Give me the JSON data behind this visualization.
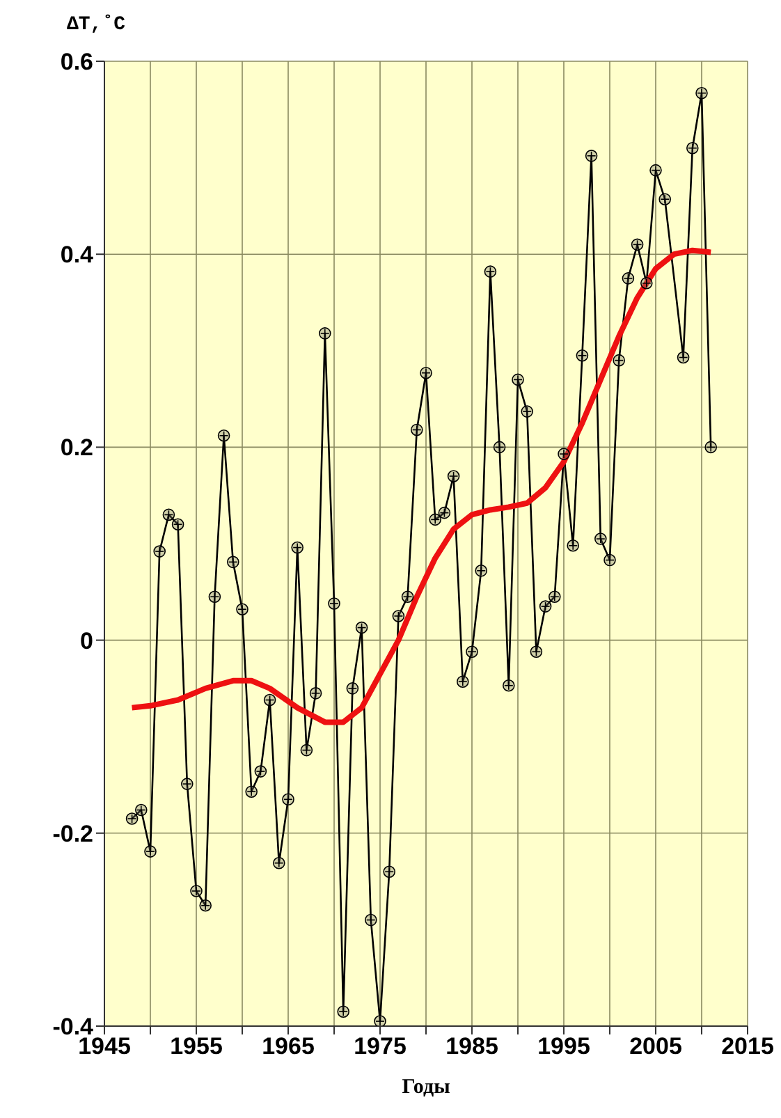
{
  "chart_data": {
    "type": "line",
    "ylabel": "ΔT,˚C",
    "xlabel": "Годы",
    "xlim": [
      1945,
      2015
    ],
    "xticks": [
      1945,
      {
        "value": 1950,
        "label": null
      },
      1955,
      {
        "value": 1960,
        "label": null
      },
      1965,
      {
        "value": 1970,
        "label": null
      },
      1975,
      {
        "value": 1980,
        "label": null
      },
      1985,
      {
        "value": 1990,
        "label": null
      },
      1995,
      {
        "value": 2000,
        "label": null
      },
      2005,
      {
        "value": 2010,
        "label": null
      },
      2015
    ],
    "ylim": [
      -0.4,
      0.6
    ],
    "yticks": [
      -0.4,
      -0.2,
      0,
      0.2,
      0.4,
      0.6
    ],
    "grid": true,
    "series": [
      {
        "color": "#000000",
        "marker": "circle",
        "x": [
          1948,
          1949,
          1950,
          1951,
          1952,
          1953,
          1954,
          1955,
          1956,
          1957,
          1958,
          1959,
          1960,
          1961,
          1962,
          1963,
          1964,
          1965,
          1966,
          1967,
          1968,
          1969,
          1970,
          1971,
          1972,
          1973,
          1974,
          1975,
          1976,
          1977,
          1978,
          1979,
          1980,
          1981,
          1982,
          1983,
          1984,
          1985,
          1986,
          1987,
          1988,
          1989,
          1990,
          1991,
          1992,
          1993,
          1994,
          1995,
          1996,
          1997,
          1998,
          1999,
          2000,
          2001,
          2002,
          2003,
          2004,
          2005,
          2006,
          2008,
          2009,
          2010,
          2011
        ],
        "values": [
          -0.185,
          -0.176,
          -0.219,
          0.092,
          0.13,
          0.12,
          -0.149,
          -0.26,
          -0.275,
          0.045,
          0.212,
          0.081,
          0.032,
          -0.157,
          -0.136,
          -0.062,
          -0.231,
          -0.165,
          0.096,
          -0.114,
          -0.055,
          0.318,
          0.038,
          -0.385,
          -0.05,
          0.013,
          -0.29,
          -0.395,
          -0.24,
          0.025,
          0.045,
          0.218,
          0.277,
          0.125,
          0.132,
          0.17,
          -0.043,
          -0.012,
          0.072,
          0.382,
          0.2,
          -0.047,
          0.27,
          0.237,
          -0.012,
          0.035,
          0.045,
          0.193,
          0.098,
          0.295,
          0.502,
          0.105,
          0.083,
          0.29,
          0.375,
          0.41,
          0.37,
          0.487,
          0.457,
          0.293,
          0.51,
          0.567,
          0.2
        ]
      },
      {
        "color": "#ee1111",
        "marker": "none",
        "x": [
          1948,
          1950,
          1953,
          1956,
          1959,
          1961,
          1963,
          1966,
          1969,
          1971,
          1973,
          1975,
          1977,
          1979,
          1981,
          1983,
          1985,
          1987,
          1989,
          1991,
          1993,
          1995,
          1997,
          1999,
          2001,
          2003,
          2005,
          2007,
          2009,
          2011
        ],
        "values": [
          -0.07,
          -0.068,
          -0.062,
          -0.05,
          -0.042,
          -0.042,
          -0.05,
          -0.07,
          -0.085,
          -0.085,
          -0.07,
          -0.035,
          0.0,
          0.045,
          0.085,
          0.115,
          0.13,
          0.135,
          0.138,
          0.142,
          0.158,
          0.185,
          0.225,
          0.27,
          0.315,
          0.355,
          0.385,
          0.4,
          0.404,
          0.402
        ]
      }
    ]
  }
}
